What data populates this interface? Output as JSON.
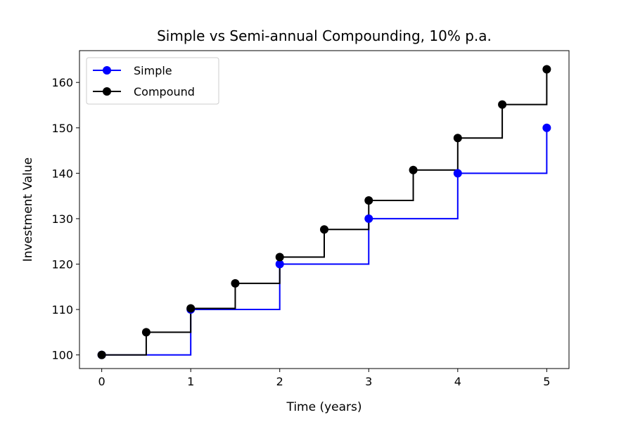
{
  "chart_data": {
    "type": "line",
    "title": "Simple vs Semi-annual Compounding, 10% p.a.",
    "xlabel": "Time (years)",
    "ylabel": "Investment Value",
    "xlim": [
      -0.25,
      5.25
    ],
    "ylim": [
      97,
      167
    ],
    "xticks": [
      0,
      1,
      2,
      3,
      4,
      5
    ],
    "yticks": [
      100,
      110,
      120,
      130,
      140,
      150,
      160
    ],
    "grid": false,
    "legend_position": "top-left",
    "step": "post",
    "series": [
      {
        "name": "Simple",
        "color": "#0000ff",
        "x": [
          0,
          1,
          2,
          3,
          4,
          5
        ],
        "y": [
          100,
          110,
          120,
          130,
          140,
          150
        ]
      },
      {
        "name": "Compound",
        "color": "#000000",
        "x": [
          0,
          0.5,
          1,
          1.5,
          2,
          2.5,
          3,
          3.5,
          4,
          4.5,
          5
        ],
        "y": [
          100,
          105,
          110.25,
          115.76,
          121.55,
          127.63,
          134.01,
          140.71,
          147.75,
          155.13,
          162.89
        ]
      }
    ]
  }
}
